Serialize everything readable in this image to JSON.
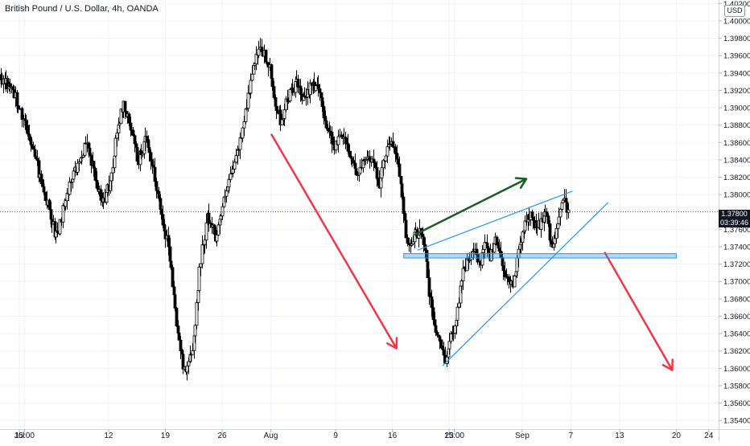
{
  "header": {
    "title": "British Pound / U.S. Dollar, 4h, OANDA"
  },
  "currency_button": "USD",
  "price_tag": {
    "price": "1.37800",
    "countdown": "03:39:46"
  },
  "chart_data": {
    "type": "candlestick",
    "symbol": "British Pound / U.S. Dollar",
    "interval": "4h",
    "source": "OANDA",
    "ylim": [
      1.353,
      1.4024
    ],
    "ytick_labels": [
      "1.40200",
      "1.40000",
      "1.39800",
      "1.39600",
      "1.39400",
      "1.39200",
      "1.39000",
      "1.38800",
      "1.38600",
      "1.38400",
      "1.38200",
      "1.38000",
      "1.37600",
      "1.37400",
      "1.37200",
      "1.37000",
      "1.36800",
      "1.36600",
      "1.36400",
      "1.36200",
      "1.36000",
      "1.35800",
      "1.35600",
      "1.35400"
    ],
    "ytick_values": [
      1.402,
      1.4,
      1.398,
      1.396,
      1.394,
      1.392,
      1.39,
      1.388,
      1.386,
      1.384,
      1.382,
      1.38,
      1.376,
      1.374,
      1.372,
      1.37,
      1.368,
      1.366,
      1.364,
      1.362,
      1.36,
      1.358,
      1.356,
      1.354
    ],
    "xtick_labels": [
      "Jul",
      "15:00",
      "12",
      "19",
      "26",
      "Aug",
      "9",
      "16",
      "23",
      "15:00",
      "Sep",
      "7",
      "13",
      "20",
      "24"
    ],
    "xtick_days": [
      1,
      1.625,
      12,
      19,
      26,
      32,
      40,
      47,
      54,
      54.625,
      63,
      69,
      75,
      82,
      86
    ],
    "x_unit": "days since Jul 1",
    "current_price": 1.378,
    "anchors": [
      [
        -1.5,
        1.3935
      ],
      [
        0,
        1.3925
      ],
      [
        1.2,
        1.3895
      ],
      [
        2.6,
        1.3855
      ],
      [
        3.6,
        1.3815
      ],
      [
        4.8,
        1.3778
      ],
      [
        5.6,
        1.3748
      ],
      [
        6.6,
        1.3795
      ],
      [
        8.2,
        1.3835
      ],
      [
        9.2,
        1.3862
      ],
      [
        10.2,
        1.3825
      ],
      [
        11.2,
        1.3788
      ],
      [
        12.2,
        1.3815
      ],
      [
        13,
        1.3872
      ],
      [
        13.8,
        1.3905
      ],
      [
        14.8,
        1.3872
      ],
      [
        15.6,
        1.3838
      ],
      [
        16.5,
        1.3862
      ],
      [
        17.5,
        1.3825
      ],
      [
        18.5,
        1.3778
      ],
      [
        19.4,
        1.3738
      ],
      [
        20.3,
        1.3655
      ],
      [
        21.2,
        1.3598
      ],
      [
        22.3,
        1.3615
      ],
      [
        23.3,
        1.3725
      ],
      [
        24.2,
        1.3775
      ],
      [
        25.2,
        1.3752
      ],
      [
        26.2,
        1.3792
      ],
      [
        27.2,
        1.3825
      ],
      [
        28.1,
        1.3858
      ],
      [
        29,
        1.3905
      ],
      [
        30,
        1.3952
      ],
      [
        30.8,
        1.3968
      ],
      [
        31.8,
        1.3945
      ],
      [
        32.5,
        1.3905
      ],
      [
        33.2,
        1.3885
      ],
      [
        34.1,
        1.3912
      ],
      [
        35.1,
        1.3928
      ],
      [
        36.1,
        1.3905
      ],
      [
        37,
        1.3932
      ],
      [
        38,
        1.3915
      ],
      [
        38.9,
        1.3878
      ],
      [
        39.9,
        1.3855
      ],
      [
        40.8,
        1.3872
      ],
      [
        41.7,
        1.3848
      ],
      [
        42.7,
        1.3822
      ],
      [
        43.6,
        1.3838
      ],
      [
        44.5,
        1.3842
      ],
      [
        45.4,
        1.3812
      ],
      [
        46.4,
        1.3862
      ],
      [
        47.3,
        1.3852
      ],
      [
        48.1,
        1.3808
      ],
      [
        48.7,
        1.3748
      ],
      [
        49.1,
        1.3735
      ],
      [
        49.7,
        1.3752
      ],
      [
        50.4,
        1.3762
      ],
      [
        51,
        1.3738
      ],
      [
        51.5,
        1.3685
      ],
      [
        52.2,
        1.3648
      ],
      [
        52.9,
        1.3625
      ],
      [
        53.5,
        1.3612
      ],
      [
        54.2,
        1.3635
      ],
      [
        54.9,
        1.3662
      ],
      [
        55.6,
        1.3712
      ],
      [
        56.3,
        1.3722
      ],
      [
        57,
        1.3735
      ],
      [
        57.7,
        1.3718
      ],
      [
        58.4,
        1.3742
      ],
      [
        59,
        1.3728
      ],
      [
        59.7,
        1.3752
      ],
      [
        60.3,
        1.3728
      ],
      [
        61,
        1.3705
      ],
      [
        61.7,
        1.3695
      ],
      [
        62.4,
        1.3725
      ],
      [
        63.1,
        1.3762
      ],
      [
        63.8,
        1.3775
      ],
      [
        64.5,
        1.3768
      ],
      [
        65.2,
        1.3762
      ],
      [
        65.9,
        1.3785
      ],
      [
        66.6,
        1.3732
      ],
      [
        67.3,
        1.3768
      ],
      [
        68,
        1.3792
      ],
      [
        68.7,
        1.3782
      ]
    ],
    "annotations": [
      {
        "kind": "arrow",
        "color": "#f23645",
        "from": [
          32.1,
          1.3869
        ],
        "to": [
          47.5,
          1.3623
        ]
      },
      {
        "kind": "arrow",
        "color": "#f23645",
        "from": [
          73.2,
          1.3733
        ],
        "to": [
          81.5,
          1.3598
        ]
      },
      {
        "kind": "arrow",
        "color": "#1b5e20",
        "from": [
          49.8,
          1.3754
        ],
        "to": [
          63.5,
          1.3818
        ]
      },
      {
        "kind": "line",
        "color": "#2196f3",
        "from": [
          50.1,
          1.3736
        ],
        "to": [
          69.2,
          1.3804
        ]
      },
      {
        "kind": "line",
        "color": "#2196f3",
        "from": [
          53.2,
          1.3603
        ],
        "to": [
          73.6,
          1.3791
        ]
      },
      {
        "kind": "zone",
        "color": "#2196f3",
        "x": [
          48.4,
          82.0
        ],
        "y": [
          1.3727,
          1.3732
        ]
      }
    ]
  }
}
